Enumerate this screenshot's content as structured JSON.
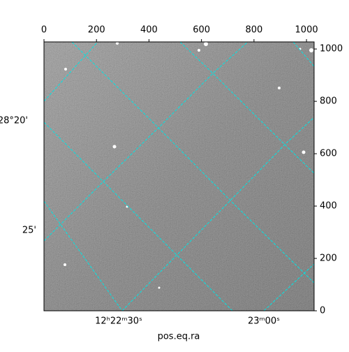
{
  "chart_data": {
    "type": "image",
    "x_label": "pos.eq.ra",
    "xlim": [
      0,
      1029
    ],
    "ylim": [
      0,
      1027
    ],
    "xticks": [
      0,
      200,
      400,
      600,
      800,
      1000
    ],
    "yticks": [
      0,
      200,
      400,
      600,
      800,
      1000
    ],
    "ra_labels": [
      "12ʰ22ᵐ30ˢ",
      "23ᵐ00ˢ"
    ],
    "dec_labels": [
      "28°20'",
      "25'"
    ],
    "grid_color": "#00e5e5"
  }
}
